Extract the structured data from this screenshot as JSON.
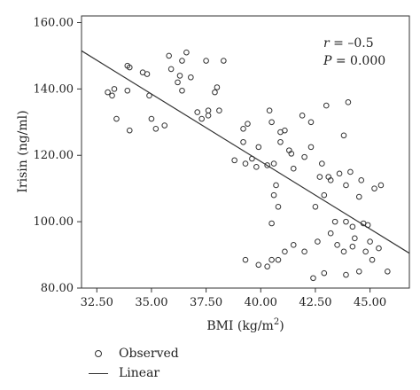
{
  "chart_data": {
    "type": "scatter",
    "xlabel": "BMI (kg/m",
    "xlabel_sup": "2",
    "xlabel_end": ")",
    "ylabel": "Irisin (ng/ml)",
    "xlim": [
      31.8,
      46.8
    ],
    "ylim": [
      80,
      162
    ],
    "x_ticks": [
      "32.50",
      "35.00",
      "37.50",
      "40.00",
      "42.50",
      "45.00"
    ],
    "x_tick_values": [
      32.5,
      35.0,
      37.5,
      40.0,
      42.5,
      45.0
    ],
    "y_ticks": [
      "80.00",
      "100.00",
      "120.00",
      "140.00",
      "160.00"
    ],
    "y_tick_values": [
      80,
      100,
      120,
      140,
      160
    ],
    "grid": false,
    "legend_position": "bottom-left",
    "annotations": {
      "r_label": "r",
      "r_value": " = –0.5",
      "p_label": "P",
      "p_value": " = 0.000"
    },
    "linear_fit": {
      "x": [
        31.8,
        46.8
      ],
      "y": [
        151.5,
        90.5
      ]
    },
    "series": [
      {
        "name": "Observed",
        "marker": "open-circle",
        "x": [
          33.0,
          33.2,
          33.4,
          33.9,
          34.0,
          34.0,
          33.3,
          33.9,
          34.6,
          34.8,
          34.9,
          35.2,
          35.0,
          35.6,
          35.8,
          35.9,
          36.2,
          36.4,
          36.3,
          36.4,
          36.6,
          36.8,
          37.1,
          37.3,
          37.6,
          37.5,
          37.9,
          38.0,
          38.1,
          38.3,
          37.6,
          38.8,
          39.2,
          39.3,
          39.4,
          39.6,
          39.2,
          39.8,
          39.9,
          40.3,
          40.4,
          40.5,
          40.6,
          40.7,
          40.6,
          40.9,
          40.9,
          41.1,
          41.4,
          40.5,
          40.8,
          41.5,
          41.3,
          41.9,
          42.0,
          42.3,
          42.3,
          42.8,
          42.5,
          42.7,
          42.9,
          43.0,
          43.2,
          43.1,
          43.4,
          43.6,
          43.8,
          43.9,
          44.0,
          44.1,
          43.9,
          44.2,
          44.6,
          44.5,
          44.7,
          44.9,
          45.2,
          45.0,
          45.4,
          45.5,
          39.9,
          39.3,
          40.5,
          40.3,
          40.8,
          41.1,
          41.5,
          42.0,
          42.4,
          42.6,
          42.9,
          43.2,
          43.5,
          43.8,
          44.2,
          44.5,
          44.8,
          45.1,
          43.9,
          44.3,
          45.8
        ],
        "y": [
          139.0,
          138.0,
          131.0,
          147.0,
          146.5,
          127.5,
          140.0,
          139.5,
          145.0,
          144.5,
          138.0,
          128.0,
          131.0,
          129.0,
          150.0,
          146.0,
          142.0,
          139.5,
          144.0,
          148.5,
          151.0,
          143.5,
          133.0,
          131.0,
          133.5,
          148.5,
          139.0,
          140.5,
          133.5,
          148.5,
          132.0,
          118.5,
          124.0,
          117.5,
          129.5,
          119.0,
          128.0,
          116.5,
          122.5,
          117.0,
          133.5,
          130.0,
          108.0,
          111.0,
          117.5,
          127.0,
          124.0,
          127.5,
          120.5,
          99.5,
          104.5,
          116.0,
          121.5,
          132.0,
          119.5,
          130.0,
          122.5,
          117.5,
          104.5,
          113.5,
          108.0,
          135.0,
          112.5,
          113.5,
          100.0,
          114.5,
          126.0,
          111.0,
          136.0,
          115.0,
          100.0,
          98.5,
          112.5,
          107.5,
          99.5,
          99.0,
          110.0,
          94.0,
          92.0,
          111.0,
          87.0,
          88.5,
          88.5,
          86.5,
          88.5,
          91.0,
          93.0,
          91.0,
          83.0,
          94.0,
          84.5,
          96.5,
          93.0,
          91.0,
          92.5,
          85.0,
          91.0,
          88.5,
          84.0,
          95.0,
          85.0
        ]
      }
    ]
  }
}
